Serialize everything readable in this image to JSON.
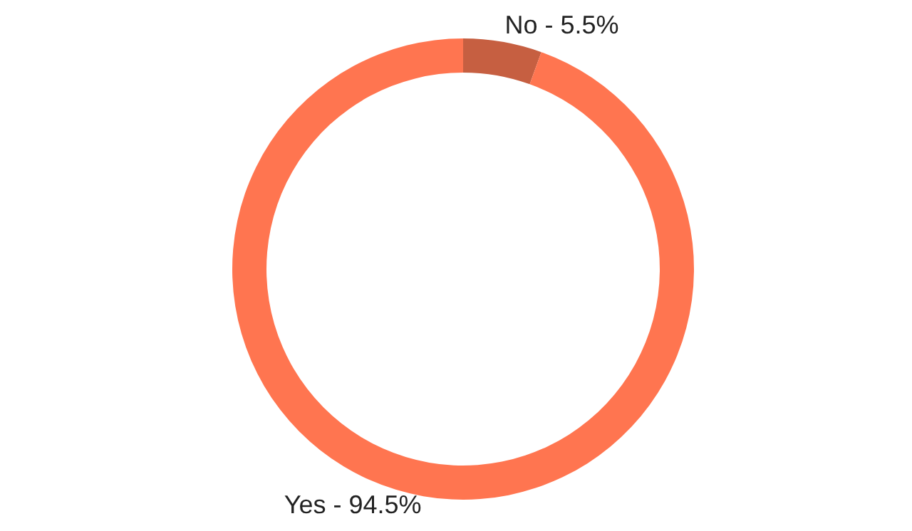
{
  "chart_data": {
    "type": "donut",
    "categories": [
      "No",
      "Yes"
    ],
    "values": [
      5.5,
      94.5
    ],
    "colors": [
      "#c65f41",
      "#ff7550"
    ],
    "value_labels": [
      "5.5%",
      "94.5%"
    ],
    "legend": false
  }
}
